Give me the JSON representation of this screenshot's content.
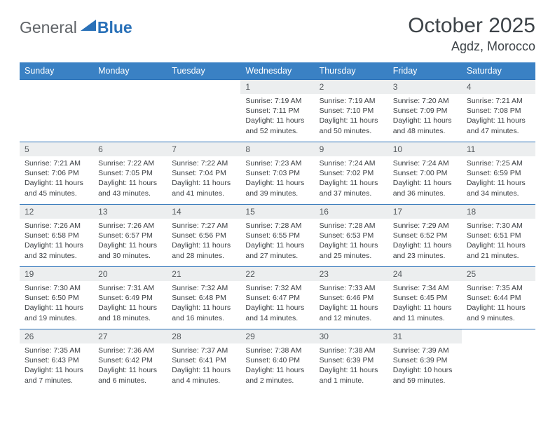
{
  "logo": {
    "text1": "General",
    "text2": "Blue"
  },
  "header": {
    "title": "October 2025",
    "location": "Agdz, Morocco"
  },
  "columns": [
    "Sunday",
    "Monday",
    "Tuesday",
    "Wednesday",
    "Thursday",
    "Friday",
    "Saturday"
  ],
  "colors": {
    "header_bg": "#3a81c4",
    "row_border": "#2a71b8",
    "daynum_bg": "#eceeef",
    "text": "#3a3e42",
    "logo_gray": "#606468",
    "logo_blue": "#2a71b8"
  },
  "weeks": [
    [
      null,
      null,
      null,
      {
        "n": "1",
        "sr": "7:19 AM",
        "ss": "7:11 PM",
        "dl": "11 hours and 52 minutes."
      },
      {
        "n": "2",
        "sr": "7:19 AM",
        "ss": "7:10 PM",
        "dl": "11 hours and 50 minutes."
      },
      {
        "n": "3",
        "sr": "7:20 AM",
        "ss": "7:09 PM",
        "dl": "11 hours and 48 minutes."
      },
      {
        "n": "4",
        "sr": "7:21 AM",
        "ss": "7:08 PM",
        "dl": "11 hours and 47 minutes."
      }
    ],
    [
      {
        "n": "5",
        "sr": "7:21 AM",
        "ss": "7:06 PM",
        "dl": "11 hours and 45 minutes."
      },
      {
        "n": "6",
        "sr": "7:22 AM",
        "ss": "7:05 PM",
        "dl": "11 hours and 43 minutes."
      },
      {
        "n": "7",
        "sr": "7:22 AM",
        "ss": "7:04 PM",
        "dl": "11 hours and 41 minutes."
      },
      {
        "n": "8",
        "sr": "7:23 AM",
        "ss": "7:03 PM",
        "dl": "11 hours and 39 minutes."
      },
      {
        "n": "9",
        "sr": "7:24 AM",
        "ss": "7:02 PM",
        "dl": "11 hours and 37 minutes."
      },
      {
        "n": "10",
        "sr": "7:24 AM",
        "ss": "7:00 PM",
        "dl": "11 hours and 36 minutes."
      },
      {
        "n": "11",
        "sr": "7:25 AM",
        "ss": "6:59 PM",
        "dl": "11 hours and 34 minutes."
      }
    ],
    [
      {
        "n": "12",
        "sr": "7:26 AM",
        "ss": "6:58 PM",
        "dl": "11 hours and 32 minutes."
      },
      {
        "n": "13",
        "sr": "7:26 AM",
        "ss": "6:57 PM",
        "dl": "11 hours and 30 minutes."
      },
      {
        "n": "14",
        "sr": "7:27 AM",
        "ss": "6:56 PM",
        "dl": "11 hours and 28 minutes."
      },
      {
        "n": "15",
        "sr": "7:28 AM",
        "ss": "6:55 PM",
        "dl": "11 hours and 27 minutes."
      },
      {
        "n": "16",
        "sr": "7:28 AM",
        "ss": "6:53 PM",
        "dl": "11 hours and 25 minutes."
      },
      {
        "n": "17",
        "sr": "7:29 AM",
        "ss": "6:52 PM",
        "dl": "11 hours and 23 minutes."
      },
      {
        "n": "18",
        "sr": "7:30 AM",
        "ss": "6:51 PM",
        "dl": "11 hours and 21 minutes."
      }
    ],
    [
      {
        "n": "19",
        "sr": "7:30 AM",
        "ss": "6:50 PM",
        "dl": "11 hours and 19 minutes."
      },
      {
        "n": "20",
        "sr": "7:31 AM",
        "ss": "6:49 PM",
        "dl": "11 hours and 18 minutes."
      },
      {
        "n": "21",
        "sr": "7:32 AM",
        "ss": "6:48 PM",
        "dl": "11 hours and 16 minutes."
      },
      {
        "n": "22",
        "sr": "7:32 AM",
        "ss": "6:47 PM",
        "dl": "11 hours and 14 minutes."
      },
      {
        "n": "23",
        "sr": "7:33 AM",
        "ss": "6:46 PM",
        "dl": "11 hours and 12 minutes."
      },
      {
        "n": "24",
        "sr": "7:34 AM",
        "ss": "6:45 PM",
        "dl": "11 hours and 11 minutes."
      },
      {
        "n": "25",
        "sr": "7:35 AM",
        "ss": "6:44 PM",
        "dl": "11 hours and 9 minutes."
      }
    ],
    [
      {
        "n": "26",
        "sr": "7:35 AM",
        "ss": "6:43 PM",
        "dl": "11 hours and 7 minutes."
      },
      {
        "n": "27",
        "sr": "7:36 AM",
        "ss": "6:42 PM",
        "dl": "11 hours and 6 minutes."
      },
      {
        "n": "28",
        "sr": "7:37 AM",
        "ss": "6:41 PM",
        "dl": "11 hours and 4 minutes."
      },
      {
        "n": "29",
        "sr": "7:38 AM",
        "ss": "6:40 PM",
        "dl": "11 hours and 2 minutes."
      },
      {
        "n": "30",
        "sr": "7:38 AM",
        "ss": "6:39 PM",
        "dl": "11 hours and 1 minute."
      },
      {
        "n": "31",
        "sr": "7:39 AM",
        "ss": "6:39 PM",
        "dl": "10 hours and 59 minutes."
      },
      null
    ]
  ]
}
